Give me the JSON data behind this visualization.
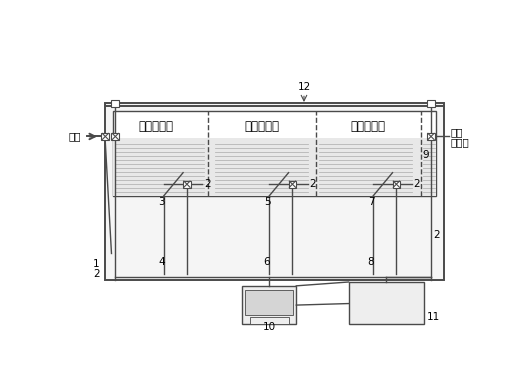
{
  "bg": "white",
  "lc": "#4a4a4a",
  "fc_main": "#f5f5f5",
  "fc_water": "#e8e8e8",
  "fc_box": "#eeeeee",
  "zones": [
    "高温煮茧区",
    "中温煮茧区",
    "低温煮茧区"
  ],
  "note12": "12",
  "steam_label": "蒸汽",
  "cold_label": "冷水",
  "tap_label": "自来水",
  "lw_thick": 1.4,
  "lw_med": 1.0,
  "lw_thin": 0.7,
  "fs_label": 7.5,
  "fs_zone": 8.5
}
